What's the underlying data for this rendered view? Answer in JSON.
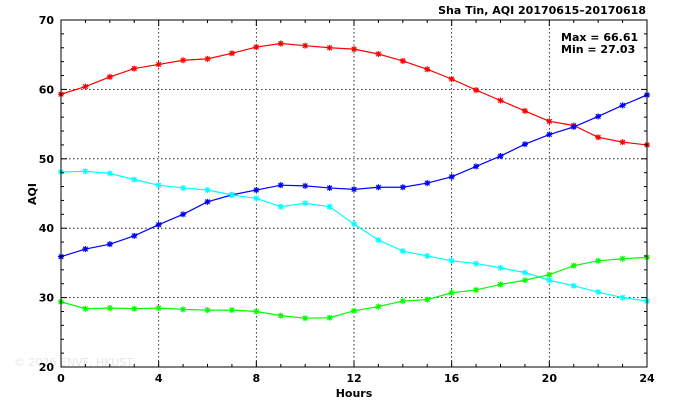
{
  "chart_data": {
    "type": "line",
    "title": "Sha Tin, AQI 20170615–20170618",
    "xlabel": "Hours",
    "ylabel": "AQI",
    "xlim": [
      0,
      24
    ],
    "ylim": [
      20,
      70
    ],
    "xticks": [
      0,
      4,
      8,
      12,
      16,
      20,
      24
    ],
    "yticks": [
      20,
      30,
      40,
      50,
      60,
      70
    ],
    "grid": true,
    "stats": {
      "max": "Max = 66.61",
      "min": "Min = 27.03"
    },
    "watermark": "© 2026  ENVF, HKUST",
    "x": [
      0,
      1,
      2,
      3,
      4,
      5,
      6,
      7,
      8,
      9,
      10,
      11,
      12,
      13,
      14,
      15,
      16,
      17,
      18,
      19,
      20,
      21,
      22,
      23,
      24
    ],
    "series": [
      {
        "color": "#ff0000",
        "values": [
          59.3,
          60.4,
          61.8,
          63.0,
          63.6,
          64.2,
          64.4,
          65.2,
          66.1,
          66.61,
          66.3,
          66.0,
          65.8,
          65.1,
          64.1,
          62.9,
          61.5,
          59.9,
          58.4,
          56.9,
          55.4,
          54.8,
          53.1,
          52.4,
          52.0
        ]
      },
      {
        "color": "#0000ff",
        "values": [
          35.9,
          37.0,
          37.7,
          38.9,
          40.5,
          42.0,
          43.8,
          44.8,
          45.5,
          46.2,
          46.1,
          45.8,
          45.6,
          45.9,
          45.9,
          46.5,
          47.4,
          48.9,
          50.4,
          52.1,
          53.5,
          54.6,
          56.1,
          57.7,
          59.2
        ]
      },
      {
        "color": "#00ffff",
        "values": [
          48.1,
          48.2,
          47.9,
          47.0,
          46.2,
          45.8,
          45.5,
          44.8,
          44.3,
          43.1,
          43.6,
          43.1,
          40.6,
          38.3,
          36.7,
          36.0,
          35.3,
          34.9,
          34.3,
          33.6,
          32.5,
          31.7,
          30.8,
          30.0,
          29.5
        ]
      },
      {
        "color": "#00ff00",
        "values": [
          29.4,
          28.4,
          28.5,
          28.4,
          28.5,
          28.3,
          28.2,
          28.2,
          28.0,
          27.4,
          27.03,
          27.1,
          28.1,
          28.7,
          29.5,
          29.7,
          30.7,
          31.1,
          31.9,
          32.5,
          33.3,
          34.6,
          35.3,
          35.6,
          35.8
        ]
      }
    ]
  }
}
